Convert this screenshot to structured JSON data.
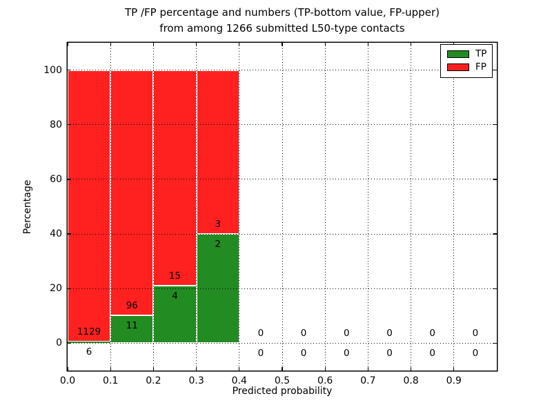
{
  "chart_data": {
    "type": "bar",
    "stacked": true,
    "title_line1": "TP /FP percentage and numbers (TP-bottom value, FP-upper)",
    "title_line2": "from among 1266 submitted L50-type contacts",
    "xlabel": "Predicted probability",
    "ylabel": "Percentage",
    "xlim": [
      0,
      1
    ],
    "ylim": [
      -10,
      110
    ],
    "xtick_values": [
      0,
      0.1,
      0.2,
      0.3,
      0.4,
      0.5,
      0.6,
      0.7,
      0.8,
      0.9
    ],
    "xtick_labels": [
      "0.0",
      "0.1",
      "0.2",
      "0.3",
      "0.4",
      "0.5",
      "0.6",
      "0.7",
      "0.8",
      "0.9"
    ],
    "ytick_values": [
      0,
      20,
      40,
      60,
      80,
      100
    ],
    "ytick_labels": [
      "0",
      "20",
      "40",
      "60",
      "80",
      "100"
    ],
    "grid_style": "dotted",
    "bar_edge_color": "#ffffff",
    "colors": {
      "tp": "#228b22",
      "fp": "#ff2020"
    },
    "legend": {
      "position": "upper right",
      "entries": [
        {
          "label": "TP",
          "color": "#228b22"
        },
        {
          "label": "FP",
          "color": "#ff2020"
        }
      ]
    },
    "bars": [
      {
        "bin": "0.0-0.1",
        "x0": 0.0,
        "x1": 0.1,
        "tp_count": 6,
        "fp_count": 1129,
        "tp_pct": 0.53,
        "fp_pct": 99.47
      },
      {
        "bin": "0.1-0.2",
        "x0": 0.1,
        "x1": 0.2,
        "tp_count": 11,
        "fp_count": 96,
        "tp_pct": 10.28,
        "fp_pct": 89.72
      },
      {
        "bin": "0.2-0.3",
        "x0": 0.2,
        "x1": 0.3,
        "tp_count": 4,
        "fp_count": 15,
        "tp_pct": 21.05,
        "fp_pct": 78.95
      },
      {
        "bin": "0.3-0.4",
        "x0": 0.3,
        "x1": 0.4,
        "tp_count": 2,
        "fp_count": 3,
        "tp_pct": 40.0,
        "fp_pct": 60.0
      },
      {
        "bin": "0.4-0.5",
        "x0": 0.4,
        "x1": 0.5,
        "tp_count": 0,
        "fp_count": 0,
        "tp_pct": 0,
        "fp_pct": 0
      },
      {
        "bin": "0.5-0.6",
        "x0": 0.5,
        "x1": 0.6,
        "tp_count": 0,
        "fp_count": 0,
        "tp_pct": 0,
        "fp_pct": 0
      },
      {
        "bin": "0.6-0.7",
        "x0": 0.6,
        "x1": 0.7,
        "tp_count": 0,
        "fp_count": 0,
        "tp_pct": 0,
        "fp_pct": 0
      },
      {
        "bin": "0.7-0.8",
        "x0": 0.7,
        "x1": 0.8,
        "tp_count": 0,
        "fp_count": 0,
        "tp_pct": 0,
        "fp_pct": 0
      },
      {
        "bin": "0.8-0.9",
        "x0": 0.8,
        "x1": 0.9,
        "tp_count": 0,
        "fp_count": 0,
        "tp_pct": 0,
        "fp_pct": 0
      },
      {
        "bin": "0.9-1.0",
        "x0": 0.9,
        "x1": 1.0,
        "tp_count": 0,
        "fp_count": 0,
        "tp_pct": 0,
        "fp_pct": 0
      }
    ]
  }
}
